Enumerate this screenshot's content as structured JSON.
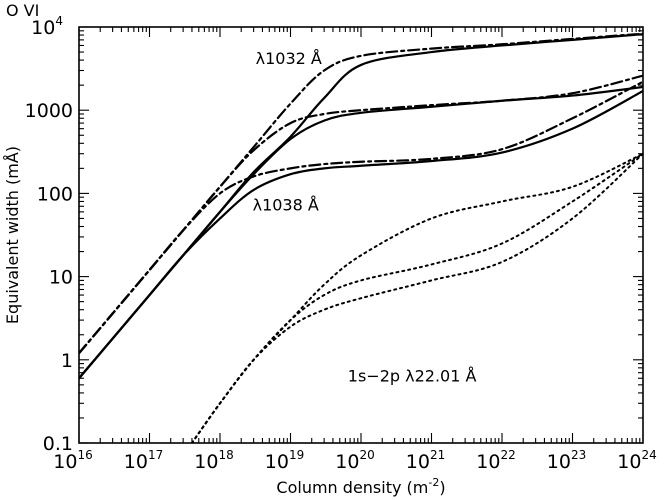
{
  "chart_data": {
    "type": "line",
    "title": "O VI",
    "xlabel": "Column density (m$^{-2}$)",
    "ylabel": "Equivalent width (mÅ)",
    "xscale": "log",
    "yscale": "log",
    "xlim": [
      1e+16,
      1e+24
    ],
    "ylim": [
      0.1,
      10000
    ],
    "x_ticks": [
      {
        "base": "10",
        "exp": "16",
        "value": 1e+16
      },
      {
        "base": "10",
        "exp": "17",
        "value": 1e+17
      },
      {
        "base": "10",
        "exp": "18",
        "value": 1e+18
      },
      {
        "base": "10",
        "exp": "19",
        "value": 1e+19
      },
      {
        "base": "10",
        "exp": "20",
        "value": 1e+20
      },
      {
        "base": "10",
        "exp": "21",
        "value": 1e+21
      },
      {
        "base": "10",
        "exp": "22",
        "value": 1e+22
      },
      {
        "base": "10",
        "exp": "23",
        "value": 1e+23
      },
      {
        "base": "10",
        "exp": "24",
        "value": 1e+24
      }
    ],
    "y_ticks": [
      {
        "label": "0.1",
        "value": 0.1
      },
      {
        "label": "1",
        "value": 1
      },
      {
        "label": "10",
        "value": 10
      },
      {
        "label": "100",
        "value": 100
      },
      {
        "label": "1000",
        "value": 1000
      },
      {
        "label": "10",
        "exp": "4",
        "value": 10000
      }
    ],
    "annotations": [
      {
        "text": "λ1032 Å",
        "x": 3.2e+18,
        "y": 3600
      },
      {
        "text": "λ1038 Å",
        "x": 2.9e+18,
        "y": 62
      },
      {
        "text": "1s−2p λ22.01 Å",
        "x": 6.5e+19,
        "y": 0.55
      }
    ],
    "series": [
      {
        "style": "solid",
        "x": [
          1e+16,
          3e+16,
          1e+17,
          3e+17,
          1e+18,
          3e+18,
          1e+19,
          3e+19,
          1e+20,
          1e+21,
          1e+22,
          1e+23,
          1e+24
        ],
        "y": [
          0.6,
          1.8,
          6,
          18,
          60,
          180,
          480,
          1400,
          3500,
          5000,
          6000,
          7000,
          8200
        ]
      },
      {
        "style": "dashdot",
        "x": [
          1e+16,
          3e+16,
          1e+17,
          3e+17,
          1e+18,
          3e+18,
          1e+19,
          3e+19,
          1e+20,
          1e+21,
          1e+22,
          1e+23,
          1e+24
        ],
        "y": [
          1.2,
          3.6,
          12,
          36,
          120,
          360,
          1200,
          3000,
          4500,
          5500,
          6200,
          7200,
          8300
        ]
      },
      {
        "style": "solid",
        "x": [
          1e+16,
          3e+16,
          1e+17,
          3e+17,
          1e+18,
          3e+18,
          1e+19,
          3e+19,
          1e+20,
          1e+21,
          1e+22,
          1e+23,
          1e+24
        ],
        "y": [
          0.6,
          1.8,
          6,
          18,
          60,
          170,
          450,
          750,
          930,
          1100,
          1300,
          1500,
          1900
        ]
      },
      {
        "style": "dashdot",
        "x": [
          1e+16,
          3e+16,
          1e+17,
          3e+17,
          1e+18,
          3e+18,
          1e+19,
          3e+19,
          1e+20,
          1e+21,
          1e+22,
          1e+23,
          1e+24
        ],
        "y": [
          1.2,
          3.6,
          12,
          36,
          120,
          330,
          700,
          900,
          1000,
          1150,
          1300,
          1600,
          2600
        ]
      },
      {
        "style": "solid",
        "x": [
          1e+16,
          3e+16,
          1e+17,
          3e+17,
          1e+18,
          3e+18,
          1e+19,
          3e+19,
          1e+20,
          1e+21,
          1e+22,
          1e+23,
          1e+24
        ],
        "y": [
          0.6,
          1.8,
          6,
          18,
          50,
          110,
          170,
          200,
          215,
          245,
          310,
          600,
          1700
        ]
      },
      {
        "style": "dashdot",
        "x": [
          1e+16,
          3e+16,
          1e+17,
          3e+17,
          1e+18,
          3e+18,
          1e+19,
          3e+19,
          1e+20,
          1e+21,
          1e+22,
          1e+23,
          1e+24
        ],
        "y": [
          1.2,
          3.6,
          12,
          36,
          100,
          160,
          200,
          225,
          240,
          260,
          340,
          800,
          2200
        ]
      },
      {
        "style": "dotted",
        "x": [
          4e+17,
          1e+18,
          3e+18,
          1e+19,
          3e+19,
          1e+20,
          1e+21,
          1e+22,
          1e+23,
          1e+24
        ],
        "y": [
          0.1,
          0.3,
          1,
          3,
          8,
          18,
          50,
          80,
          120,
          300
        ]
      },
      {
        "style": "dotted",
        "x": [
          4e+17,
          1e+18,
          3e+18,
          1e+19,
          3e+19,
          1e+20,
          1e+21,
          1e+22,
          1e+23,
          1e+24
        ],
        "y": [
          0.1,
          0.3,
          1,
          3,
          6,
          9,
          14,
          25,
          80,
          300
        ]
      },
      {
        "style": "dotted",
        "x": [
          4e+17,
          1e+18,
          3e+18,
          1e+19,
          3e+19,
          1e+20,
          1e+21,
          1e+22,
          1e+23,
          1e+24
        ],
        "y": [
          0.1,
          0.3,
          1,
          2.5,
          4,
          5.5,
          9,
          15,
          50,
          300
        ]
      }
    ]
  }
}
